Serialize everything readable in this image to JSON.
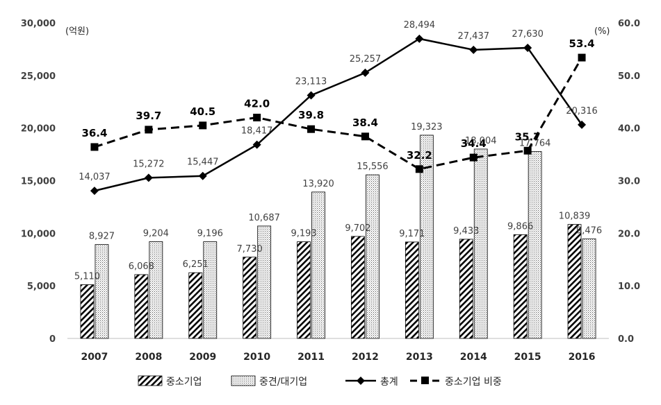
{
  "chart_data": {
    "type": "bar",
    "categories": [
      "2007",
      "2008",
      "2009",
      "2010",
      "2011",
      "2012",
      "2013",
      "2014",
      "2015",
      "2016"
    ],
    "y_left_unit": "(억원)",
    "y_right_unit": "(%)",
    "y_left_ticks": [
      "0",
      "5,000",
      "10,000",
      "15,000",
      "20,000",
      "25,000",
      "30,000"
    ],
    "y_right_ticks": [
      "0.0",
      "10.0",
      "20.0",
      "30.0",
      "40.0",
      "50.0",
      "60.0"
    ],
    "ylim": [
      0,
      30000
    ],
    "y2lim": [
      0,
      60
    ],
    "series": [
      {
        "name": "중소기업",
        "kind": "bar",
        "axis": "left",
        "pattern": "diagonal-hatch",
        "values": [
          5110,
          6068,
          6251,
          7730,
          9193,
          9702,
          9171,
          9433,
          9866,
          10839
        ],
        "labels": [
          "5,110",
          "6,068",
          "6,251",
          "7,730",
          "9,193",
          "9,702",
          "9,171",
          "9,433",
          "9,866",
          "10,839"
        ]
      },
      {
        "name": "중견/대기업",
        "kind": "bar",
        "axis": "left",
        "pattern": "dotted",
        "values": [
          8927,
          9204,
          9196,
          10687,
          13920,
          15556,
          19323,
          18004,
          17764,
          9476
        ],
        "labels": [
          "8,927",
          "9,204",
          "9,196",
          "10,687",
          "13,920",
          "15,556",
          "19,323",
          "18,004",
          "17,764",
          "9,476"
        ]
      },
      {
        "name": "총계",
        "kind": "line",
        "axis": "left",
        "marker": "diamond",
        "values": [
          14037,
          15272,
          15447,
          18417,
          23113,
          25257,
          28494,
          27437,
          27630,
          20316
        ],
        "labels": [
          "14,037",
          "15,272",
          "15,447",
          "18,417",
          "23,113",
          "25,257",
          "28,494",
          "27,437",
          "27,630",
          "20,316"
        ]
      },
      {
        "name": "중소기업 비중",
        "kind": "line",
        "axis": "right",
        "marker": "square",
        "dash": true,
        "values": [
          36.4,
          39.7,
          40.5,
          42.0,
          39.8,
          38.4,
          32.2,
          34.4,
          35.7,
          53.4
        ],
        "labels": [
          "36.4",
          "39.7",
          "40.5",
          "42.0",
          "39.8",
          "38.4",
          "32.2",
          "34.4",
          "35.7",
          "53.4"
        ]
      }
    ],
    "grid": false,
    "legend_position": "bottom",
    "colors": {
      "line": "#000000",
      "bar_stroke": "#000000",
      "text": "#404040"
    }
  }
}
